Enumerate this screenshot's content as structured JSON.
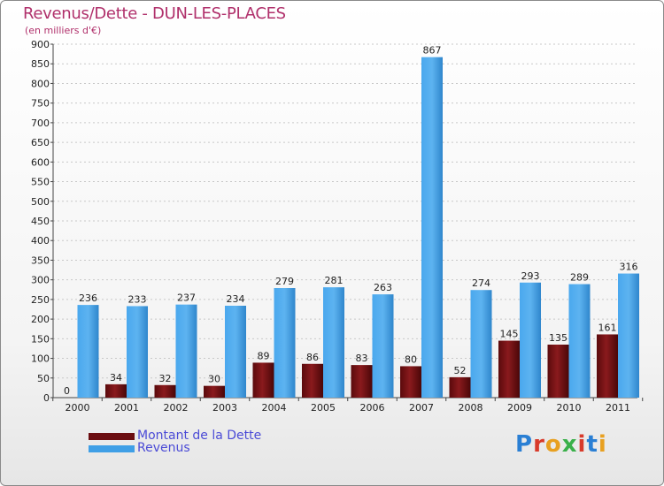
{
  "chart_data": {
    "type": "bar",
    "title": "Revenus/Dette - DUN-LES-PLACES",
    "subtitle": "(en milliers d'€)",
    "categories": [
      "2000",
      "2001",
      "2002",
      "2003",
      "2004",
      "2005",
      "2006",
      "2007",
      "2008",
      "2009",
      "2010",
      "2011"
    ],
    "series": [
      {
        "name": "Montant de la Dette",
        "color": "#7a0f12",
        "values": [
          0,
          34,
          32,
          30,
          89,
          86,
          83,
          80,
          52,
          145,
          135,
          161
        ]
      },
      {
        "name": "Revenus",
        "color": "#3f9fe6",
        "values": [
          236,
          233,
          237,
          234,
          279,
          281,
          263,
          867,
          274,
          293,
          289,
          316
        ]
      }
    ],
    "ylim": [
      0,
      900
    ],
    "yticks": [
      0,
      50,
      100,
      150,
      200,
      250,
      300,
      350,
      400,
      450,
      500,
      550,
      600,
      650,
      700,
      750,
      800,
      850,
      900
    ],
    "grid": true,
    "legend_position": "bottom-left"
  },
  "branding": {
    "logo_text": "Proxiti",
    "logo_colors": [
      "#2a7fd4",
      "#d83a2a",
      "#e8a020",
      "#3ab04a",
      "#d83a2a",
      "#2a7fd4",
      "#e8a020"
    ]
  }
}
